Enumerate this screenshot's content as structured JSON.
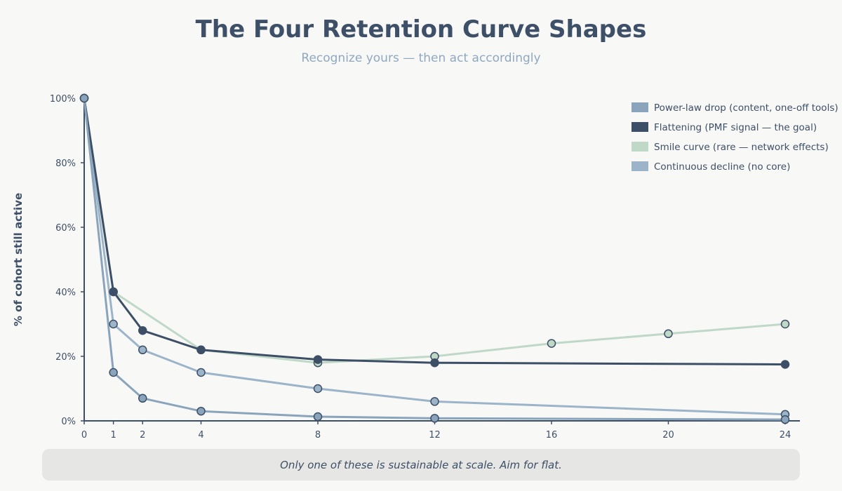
{
  "chart_data": {
    "type": "line",
    "title": "The Four Retention Curve Shapes",
    "subtitle": "Recognize yours — then act accordingly",
    "xlabel": "",
    "ylabel": "% of cohort still active",
    "xlim": [
      0,
      24
    ],
    "ylim": [
      0,
      100
    ],
    "x_ticks": [
      0,
      1,
      2,
      4,
      8,
      12,
      16,
      20,
      24
    ],
    "y_ticks": [
      "0%",
      "20%",
      "40%",
      "60%",
      "80%",
      "100%"
    ],
    "y_tick_values": [
      0,
      20,
      40,
      60,
      80,
      100
    ],
    "grid": false,
    "legend_position": "top-right",
    "series": [
      {
        "name": "Power-law drop (content, one-off tools)",
        "color": "#8aa4bc",
        "x": [
          0,
          1,
          2,
          4,
          8,
          12,
          24
        ],
        "y": [
          100,
          15,
          7,
          3,
          1.3,
          0.8,
          0.4
        ]
      },
      {
        "name": "Flattening (PMF signal — the goal)",
        "color": "#3d4f66",
        "x": [
          0,
          1,
          2,
          4,
          8,
          12,
          24
        ],
        "y": [
          100,
          40,
          28,
          22,
          19,
          18,
          17.5
        ]
      },
      {
        "name": "Smile curve (rare — network effects)",
        "color": "#c0d8c8",
        "x": [
          0,
          1,
          4,
          8,
          12,
          16,
          20,
          24
        ],
        "y": [
          100,
          40,
          22,
          18,
          20,
          24,
          27,
          30
        ]
      },
      {
        "name": "Continuous decline (no core)",
        "color": "#9cb4c9",
        "x": [
          0,
          1,
          2,
          4,
          8,
          12,
          24
        ],
        "y": [
          100,
          30,
          22,
          15,
          10,
          6,
          2
        ]
      }
    ]
  },
  "footer": "Only one of these is sustainable at scale. Aim for flat."
}
